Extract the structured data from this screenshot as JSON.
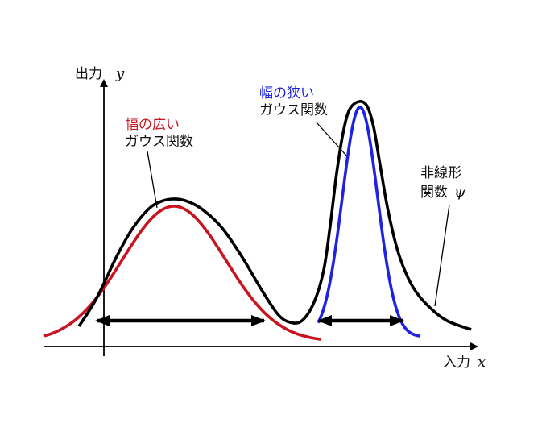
{
  "axes": {
    "y_label": "出力",
    "y_symbol": "y",
    "x_label": "入力",
    "x_symbol": "x"
  },
  "wide_gaussian": {
    "line1": "幅の広い",
    "line2": "ガウス関数",
    "color": "#c8141e"
  },
  "narrow_gaussian": {
    "line1": "幅の狭い",
    "line2": "ガウス関数",
    "color": "#1f22e0"
  },
  "nonlinear": {
    "line1": "非線形",
    "line2": "関数",
    "symbol": "ψ",
    "color": "#000000"
  }
}
